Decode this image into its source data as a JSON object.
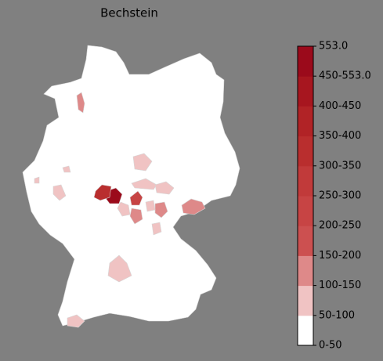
{
  "title": "Bechstein",
  "colorbar": {
    "labels": [
      "0-50",
      "50-100",
      "100-150",
      "150-200",
      "200-250",
      "250-300",
      "300-350",
      "350-400",
      "400-450",
      "450-553.0",
      "553.0"
    ],
    "colors": [
      "#ffffff",
      "#f0c3c3",
      "#de8989",
      "#cc5050",
      "#c74444",
      "#c13a3a",
      "#b92e2e",
      "#b12326",
      "#a7161f",
      "#9b0a1b"
    ]
  }
}
